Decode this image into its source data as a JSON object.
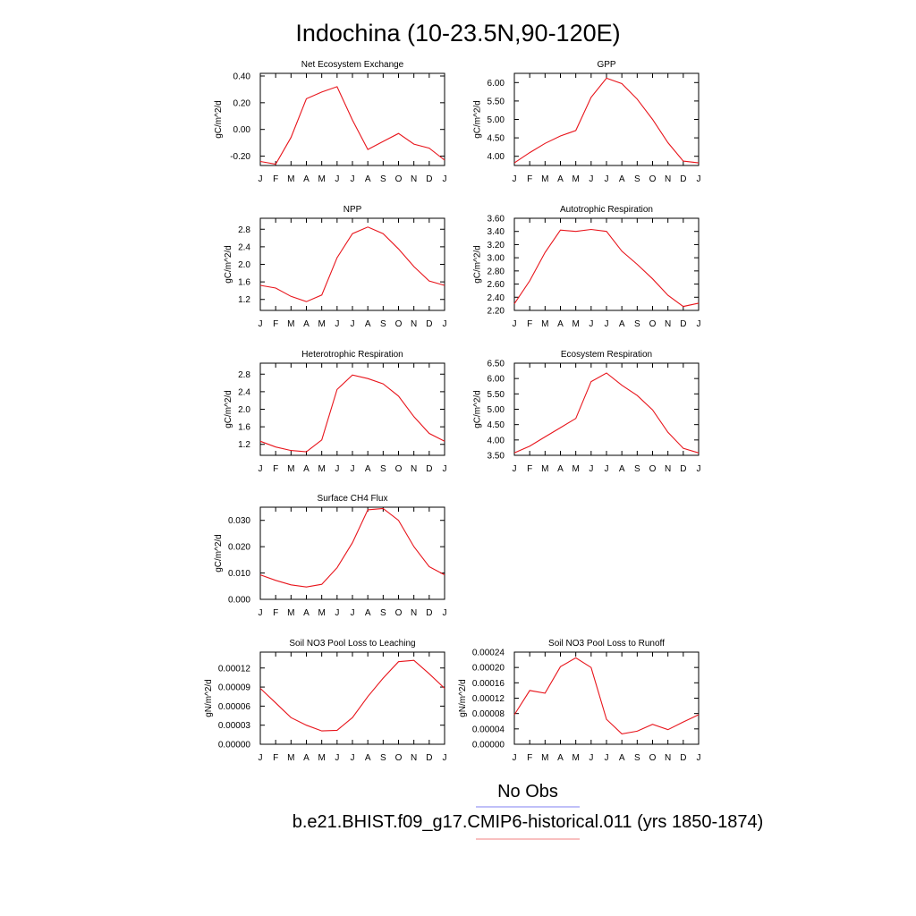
{
  "page_title": "Indochina (10-23.5N,90-120E)",
  "legend": [
    {
      "label": "No Obs",
      "color": "#8080f0"
    },
    {
      "label": "b.e21.BHIST.f09_g17.CMIP6-historical.011 (yrs 1850-1874)",
      "color": "#f08080"
    }
  ],
  "series_color": "#e8141b",
  "chart_data": [
    {
      "type": "line",
      "title": "Net Ecosystem Exchange",
      "ylabel": "gC/m^2/d",
      "categories": [
        "J",
        "F",
        "M",
        "A",
        "M",
        "J",
        "J",
        "A",
        "S",
        "O",
        "N",
        "D",
        "J"
      ],
      "ylim": [
        -0.27,
        0.42
      ],
      "yticks": [
        "0.40",
        "0.20",
        "0.00",
        "-0.20"
      ],
      "ytick_values": [
        0.4,
        0.2,
        0.0,
        -0.2
      ],
      "values": [
        -0.24,
        -0.26,
        -0.06,
        0.23,
        0.28,
        0.32,
        0.07,
        -0.15,
        -0.09,
        -0.03,
        -0.11,
        -0.14,
        -0.23
      ]
    },
    {
      "type": "line",
      "title": "GPP",
      "ylabel": "gC/m^2/d",
      "categories": [
        "J",
        "F",
        "M",
        "A",
        "M",
        "J",
        "J",
        "A",
        "S",
        "O",
        "N",
        "D",
        "J"
      ],
      "ylim": [
        3.75,
        6.25
      ],
      "yticks": [
        "6.00",
        "5.50",
        "5.00",
        "4.50",
        "4.00"
      ],
      "ytick_values": [
        6.0,
        5.5,
        5.0,
        4.5,
        4.0
      ],
      "values": [
        3.82,
        4.1,
        4.35,
        4.55,
        4.7,
        5.6,
        6.12,
        5.97,
        5.55,
        5.0,
        4.37,
        3.87,
        3.82
      ]
    },
    {
      "type": "line",
      "title": "NPP",
      "ylabel": "gC/m^2/d",
      "categories": [
        "J",
        "F",
        "M",
        "A",
        "M",
        "J",
        "J",
        "A",
        "S",
        "O",
        "N",
        "D",
        "J"
      ],
      "ylim": [
        0.95,
        3.05
      ],
      "yticks": [
        "2.8",
        "2.4",
        "2.0",
        "1.6",
        "1.2"
      ],
      "ytick_values": [
        2.8,
        2.4,
        2.0,
        1.6,
        1.2
      ],
      "values": [
        1.52,
        1.46,
        1.27,
        1.15,
        1.3,
        2.15,
        2.7,
        2.85,
        2.7,
        2.35,
        1.95,
        1.62,
        1.52
      ]
    },
    {
      "type": "line",
      "title": "Autotrophic Respiration",
      "ylabel": "gC/m^2/d",
      "categories": [
        "J",
        "F",
        "M",
        "A",
        "M",
        "J",
        "J",
        "A",
        "S",
        "O",
        "N",
        "D",
        "J"
      ],
      "ylim": [
        2.2,
        3.6
      ],
      "yticks": [
        "3.60",
        "3.40",
        "3.20",
        "3.00",
        "2.80",
        "2.60",
        "2.40",
        "2.20"
      ],
      "ytick_values": [
        3.6,
        3.4,
        3.2,
        3.0,
        2.8,
        2.6,
        2.4,
        2.2
      ],
      "values": [
        2.3,
        2.65,
        3.08,
        3.42,
        3.4,
        3.43,
        3.4,
        3.1,
        2.9,
        2.68,
        2.43,
        2.26,
        2.31
      ]
    },
    {
      "type": "line",
      "title": "Heterotrophic Respiration",
      "ylabel": "gC/m^2/d",
      "categories": [
        "J",
        "F",
        "M",
        "A",
        "M",
        "J",
        "J",
        "A",
        "S",
        "O",
        "N",
        "D",
        "J"
      ],
      "ylim": [
        0.95,
        3.05
      ],
      "yticks": [
        "2.8",
        "2.4",
        "2.0",
        "1.6",
        "1.2"
      ],
      "ytick_values": [
        2.8,
        2.4,
        2.0,
        1.6,
        1.2
      ],
      "values": [
        1.27,
        1.14,
        1.06,
        1.03,
        1.3,
        2.45,
        2.78,
        2.7,
        2.58,
        2.3,
        1.83,
        1.45,
        1.27
      ]
    },
    {
      "type": "line",
      "title": "Ecosystem Respiration",
      "ylabel": "gC/m^2/d",
      "categories": [
        "J",
        "F",
        "M",
        "A",
        "M",
        "J",
        "J",
        "A",
        "S",
        "O",
        "N",
        "D",
        "J"
      ],
      "ylim": [
        3.5,
        6.5
      ],
      "yticks": [
        "6.50",
        "6.00",
        "5.50",
        "5.00",
        "4.50",
        "4.00",
        "3.50"
      ],
      "ytick_values": [
        6.5,
        6.0,
        5.5,
        5.0,
        4.5,
        4.0,
        3.5
      ],
      "values": [
        3.58,
        3.8,
        4.1,
        4.4,
        4.7,
        5.9,
        6.18,
        5.78,
        5.45,
        4.98,
        4.25,
        3.73,
        3.58
      ]
    },
    {
      "type": "line",
      "title": "Surface CH4 Flux",
      "ylabel": "gC/m^2/d",
      "categories": [
        "J",
        "F",
        "M",
        "A",
        "M",
        "J",
        "J",
        "A",
        "S",
        "O",
        "N",
        "D",
        "J"
      ],
      "ylim": [
        0.0,
        0.035
      ],
      "yticks": [
        "0.030",
        "0.020",
        "0.010",
        "0.000"
      ],
      "ytick_values": [
        0.03,
        0.02,
        0.01,
        0.0
      ],
      "values": [
        0.0093,
        0.0072,
        0.0055,
        0.0047,
        0.0057,
        0.012,
        0.0215,
        0.034,
        0.0345,
        0.03,
        0.02,
        0.0124,
        0.0093
      ]
    },
    {
      "type": "line",
      "title": "Soil NO3 Pool Loss to Leaching",
      "ylabel": "gN/m^2/d",
      "categories": [
        "J",
        "F",
        "M",
        "A",
        "M",
        "J",
        "J",
        "A",
        "S",
        "O",
        "N",
        "D",
        "J"
      ],
      "ylim": [
        0.0,
        0.000145
      ],
      "yticks": [
        "0.00012",
        "0.00009",
        "0.00006",
        "0.00003",
        "0.00000"
      ],
      "ytick_values": [
        0.00012,
        9e-05,
        6e-05,
        3e-05,
        0.0
      ],
      "values": [
        8.8e-05,
        6.5e-05,
        4.2e-05,
        3e-05,
        2.1e-05,
        2.2e-05,
        4.2e-05,
        7.5e-05,
        0.000104,
        0.00013,
        0.000132,
        0.000111,
        8.8e-05
      ]
    },
    {
      "type": "line",
      "title": "Soil NO3 Pool Loss to Runoff",
      "ylabel": "gN/m^2/d",
      "categories": [
        "J",
        "F",
        "M",
        "A",
        "M",
        "J",
        "J",
        "A",
        "S",
        "O",
        "N",
        "D",
        "J"
      ],
      "ylim": [
        0.0,
        0.00024
      ],
      "yticks": [
        "0.00024",
        "0.00020",
        "0.00016",
        "0.00012",
        "0.00008",
        "0.00004",
        "0.00000"
      ],
      "ytick_values": [
        0.00024,
        0.0002,
        0.00016,
        0.00012,
        8e-05,
        4e-05,
        0.0
      ],
      "values": [
        7.7e-05,
        0.00014,
        0.000133,
        0.000202,
        0.000225,
        0.0002,
        6.5e-05,
        2.7e-05,
        3.4e-05,
        5.2e-05,
        3.8e-05,
        5.8e-05,
        7.7e-05
      ]
    }
  ]
}
